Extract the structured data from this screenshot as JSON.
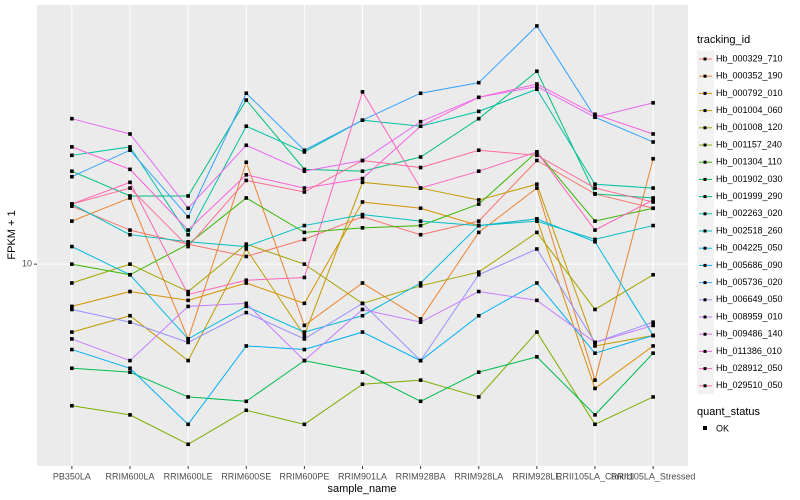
{
  "chart_data": {
    "type": "line",
    "x_label": "sample_name",
    "y_label": "FPKM + 1",
    "categories": [
      "PB350LA",
      "RRIM600LA",
      "RRIM600LE",
      "RRIM600SE",
      "RRIM600PE",
      "RRIM901LA",
      "RRIM928BA",
      "RRIM928LA",
      "RRIM928LE",
      "RRII105LA_Control",
      "RRII105LA_Stressed"
    ],
    "log": true,
    "grid": true,
    "legend": "right",
    "ylim": [
      4.6,
      27.1
    ],
    "yticks": [
      10
    ],
    "legend_title": "tracking_id",
    "status_title": "quant_status",
    "status_label": "OK",
    "series": [
      {
        "name": "Hb_000329_710",
        "color": "#F8766D",
        "values": [
          12.5,
          11.4,
          10.8,
          10.3,
          11.0,
          12.0,
          11.2,
          11.8,
          14.9,
          13.1,
          12.4
        ]
      },
      {
        "name": "Hb_000352_190",
        "color": "#EA8331",
        "values": [
          11.8,
          12.9,
          7.5,
          14.8,
          7.9,
          9.3,
          8.1,
          11.3,
          13.4,
          6.4,
          15.0
        ]
      },
      {
        "name": "Hb_000792_010",
        "color": "#D89000",
        "values": [
          8.5,
          9.0,
          8.7,
          9.3,
          8.6,
          12.7,
          12.4,
          11.6,
          11.9,
          6.2,
          7.3
        ]
      },
      {
        "name": "Hb_001004_060",
        "color": "#C09B00",
        "values": [
          7.7,
          8.2,
          6.9,
          10.6,
          7.6,
          13.7,
          13.4,
          12.8,
          13.6,
          7.3,
          7.6
        ]
      },
      {
        "name": "Hb_001008_120",
        "color": "#A3A500",
        "values": [
          9.3,
          10.0,
          9.0,
          10.8,
          10.0,
          8.6,
          9.2,
          9.7,
          11.3,
          8.4,
          9.6
        ]
      },
      {
        "name": "Hb_001157_240",
        "color": "#7CAE00",
        "values": [
          5.8,
          5.6,
          5.0,
          5.7,
          5.4,
          6.3,
          6.4,
          6.0,
          7.7,
          5.4,
          6.0
        ]
      },
      {
        "name": "Hb_001304_110",
        "color": "#39B600",
        "values": [
          10.0,
          9.6,
          10.8,
          12.9,
          11.3,
          11.5,
          11.6,
          12.6,
          15.4,
          11.8,
          12.4
        ]
      },
      {
        "name": "Hb_001902_030",
        "color": "#00BB4E",
        "values": [
          6.7,
          6.6,
          6.0,
          5.9,
          6.9,
          6.6,
          5.9,
          6.6,
          7.0,
          5.6,
          7.1
        ]
      },
      {
        "name": "Hb_001999_290",
        "color": "#00BF7D",
        "values": [
          14.3,
          13.0,
          13.0,
          18.8,
          14.4,
          14.3,
          15.1,
          17.5,
          21.0,
          13.1,
          12.9
        ]
      },
      {
        "name": "Hb_002263_020",
        "color": "#00C1A3",
        "values": [
          15.2,
          15.7,
          11.2,
          17.0,
          15.4,
          17.4,
          17.0,
          18.0,
          19.6,
          13.6,
          13.4
        ]
      },
      {
        "name": "Hb_002518_260",
        "color": "#00BFC4",
        "values": [
          12.6,
          11.2,
          10.9,
          10.7,
          11.6,
          12.1,
          11.8,
          11.6,
          11.8,
          11.0,
          11.6
        ]
      },
      {
        "name": "Hb_004225_050",
        "color": "#00BAE0",
        "values": [
          10.7,
          9.6,
          7.5,
          8.5,
          7.7,
          8.2,
          9.3,
          11.6,
          11.9,
          10.9,
          7.6
        ]
      },
      {
        "name": "Hb_005686_090",
        "color": "#00B0F6",
        "values": [
          7.2,
          6.7,
          5.4,
          7.3,
          7.2,
          7.7,
          6.9,
          8.2,
          9.3,
          7.1,
          7.6
        ]
      },
      {
        "name": "Hb_005736_020",
        "color": "#35A2FF",
        "values": [
          14.0,
          15.5,
          12.0,
          19.3,
          15.5,
          17.4,
          19.3,
          20.1,
          25.0,
          17.6,
          16.0
        ]
      },
      {
        "name": "Hb_006649_050",
        "color": "#9590FF",
        "values": [
          8.4,
          8.0,
          7.4,
          8.3,
          7.5,
          8.6,
          6.9,
          9.6,
          10.6,
          7.4,
          8.0
        ]
      },
      {
        "name": "Hb_008959_010",
        "color": "#C77CFF",
        "values": [
          7.5,
          6.9,
          8.5,
          8.6,
          6.9,
          8.4,
          8.0,
          9.0,
          8.7,
          7.4,
          7.9
        ]
      },
      {
        "name": "Hb_009486_140",
        "color": "#E76BF3",
        "values": [
          17.5,
          16.5,
          12.4,
          15.8,
          14.3,
          14.9,
          17.3,
          19.0,
          19.8,
          17.6,
          18.6
        ]
      },
      {
        "name": "Hb_011386_010",
        "color": "#FA62DB",
        "values": [
          15.7,
          14.4,
          11.4,
          14.1,
          13.4,
          13.9,
          17.0,
          19.0,
          20.0,
          17.8,
          16.5
        ]
      },
      {
        "name": "Hb_028912_050",
        "color": "#FF62BC",
        "values": [
          12.6,
          13.7,
          8.9,
          9.4,
          9.5,
          19.4,
          13.4,
          14.3,
          15.4,
          11.4,
          12.8
        ]
      },
      {
        "name": "Hb_029510_050",
        "color": "#FF6A98",
        "values": [
          12.6,
          13.4,
          10.7,
          13.8,
          13.2,
          14.9,
          14.5,
          15.5,
          15.2,
          13.4,
          12.7
        ]
      }
    ]
  }
}
